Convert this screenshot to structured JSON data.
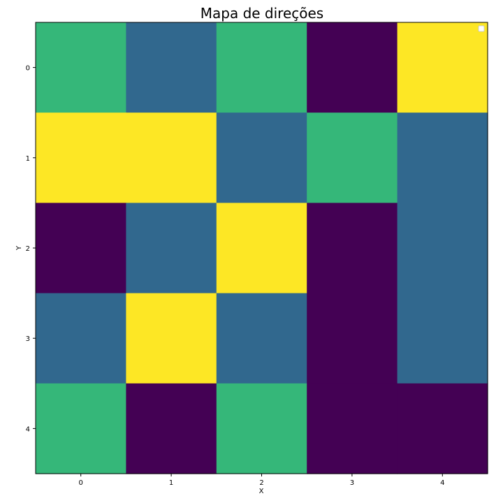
{
  "chart_data": {
    "type": "heatmap",
    "title": "Mapa de direções",
    "xlabel": "X",
    "ylabel": "Y",
    "x_ticks": [
      "0",
      "1",
      "2",
      "3",
      "4"
    ],
    "y_ticks": [
      "0",
      "1",
      "2",
      "3",
      "4"
    ],
    "colormap": "viridis",
    "colors": {
      "0": "#440154",
      "1": "#31688e",
      "2": "#35b779",
      "3": "#fde725"
    },
    "values": [
      [
        2,
        1,
        2,
        0,
        3
      ],
      [
        3,
        3,
        1,
        2,
        1
      ],
      [
        0,
        1,
        3,
        0,
        1
      ],
      [
        1,
        3,
        1,
        0,
        1
      ],
      [
        2,
        0,
        2,
        0,
        0
      ]
    ],
    "legend": {
      "location": "upper right",
      "entries": []
    },
    "grid": false
  }
}
